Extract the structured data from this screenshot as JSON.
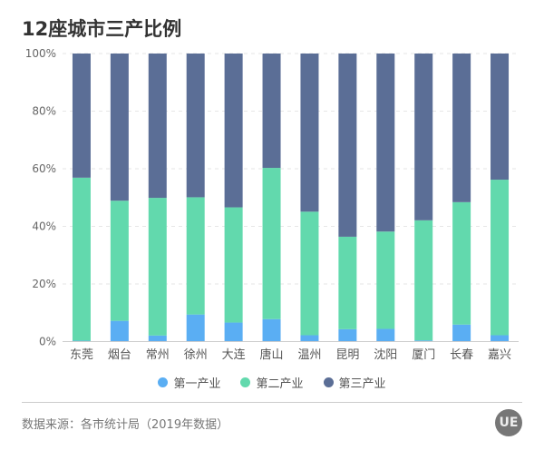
{
  "title": "12座城市三产比例",
  "source": "数据来源：各市统计局（2019年数据）",
  "logo_text": "UE",
  "colors": {
    "第一产业": "#5aaef3",
    "第二产业": "#62d9ad",
    "第三产业": "#5b6e96"
  },
  "chart_data": {
    "type": "bar",
    "stacked": true,
    "title": "12座城市三产比例",
    "categories": [
      "东莞",
      "烟台",
      "常州",
      "徐州",
      "大连",
      "唐山",
      "温州",
      "昆明",
      "沈阳",
      "厦门",
      "长春",
      "嘉兴"
    ],
    "series": [
      {
        "name": "第一产业",
        "values": [
          0.3,
          7.2,
          2.1,
          9.4,
          6.6,
          7.8,
          2.2,
          4.3,
          4.4,
          0.4,
          5.9,
          2.2
        ]
      },
      {
        "name": "第二产业",
        "values": [
          56.6,
          41.7,
          47.8,
          40.7,
          40.0,
          52.5,
          42.9,
          32.1,
          33.8,
          41.7,
          42.5,
          54.0
        ]
      },
      {
        "name": "第三产业",
        "values": [
          43.1,
          51.1,
          50.1,
          49.9,
          53.4,
          39.7,
          54.9,
          63.6,
          61.8,
          57.9,
          51.6,
          43.8
        ]
      }
    ],
    "ylim": [
      0,
      100
    ],
    "yticks": [
      "0%",
      "20%",
      "40%",
      "60%",
      "80%",
      "100%"
    ],
    "grid": true,
    "legend": "bottom"
  }
}
